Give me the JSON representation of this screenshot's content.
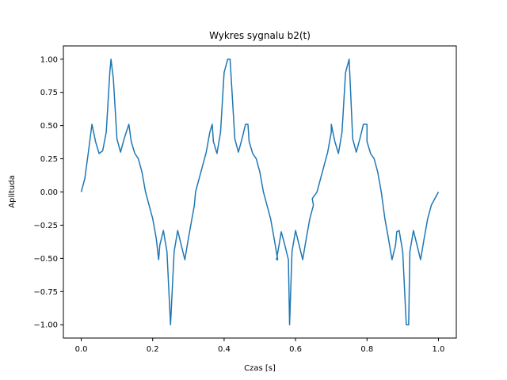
{
  "chart_data": {
    "type": "line",
    "title": "Wykres sygnalu b2(t)",
    "xlabel": "Czas [s]",
    "ylabel": "Aplituda",
    "xlim": [
      -0.05,
      1.05
    ],
    "ylim": [
      -1.1,
      1.1
    ],
    "x_ticks": [
      0.0,
      0.2,
      0.4,
      0.6,
      0.8,
      1.0
    ],
    "x_tick_labels": [
      "0.0",
      "0.2",
      "0.4",
      "0.6",
      "0.8",
      "1.0"
    ],
    "y_ticks": [
      -1.0,
      -0.75,
      -0.5,
      -0.25,
      0.0,
      0.25,
      0.5,
      0.75,
      1.0
    ],
    "y_tick_labels": [
      "−1.00",
      "−0.75",
      "−0.50",
      "−0.25",
      "0.00",
      "0.25",
      "0.50",
      "0.75",
      "1.00"
    ],
    "grid": false,
    "line_color": "#1f77b4",
    "series": [
      {
        "x": [
          0.0,
          0.01,
          0.02,
          0.03,
          0.04,
          0.05,
          0.06,
          0.07,
          0.08,
          0.0833,
          0.09,
          0.1,
          0.11,
          0.12,
          0.1333,
          0.14,
          0.15,
          0.16,
          0.17,
          0.18,
          0.19,
          0.2,
          0.21,
          0.2167,
          0.22,
          0.23,
          0.24,
          0.25,
          0.26,
          0.27,
          0.28,
          0.29,
          0.3,
          0.31,
          0.3167,
          0.32,
          0.33,
          0.34,
          0.35,
          0.36,
          0.3667,
          0.37,
          0.38,
          0.39,
          0.4,
          0.41,
          0.4167,
          0.42,
          0.43,
          0.44,
          0.45,
          0.46,
          0.4667,
          0.47,
          0.48,
          0.49,
          0.5,
          0.51,
          0.52,
          0.53,
          0.54,
          0.55,
          0.5467,
          0.56,
          0.57,
          0.58,
          0.5833,
          0.59,
          0.6,
          0.61,
          0.62,
          0.63,
          0.64,
          0.65,
          0.6467,
          0.66,
          0.67,
          0.68,
          0.69,
          0.7,
          0.7,
          0.71,
          0.72,
          0.73,
          0.74,
          0.75,
          0.76,
          0.77,
          0.78,
          0.79,
          0.8,
          0.8,
          0.81,
          0.82,
          0.83,
          0.84,
          0.85,
          0.86,
          0.87,
          0.88,
          0.8833,
          0.89,
          0.9,
          0.91,
          0.9167,
          0.92,
          0.93,
          0.94,
          0.95,
          0.96,
          0.97,
          0.98,
          0.99,
          1.0
        ],
        "y": [
          0.0,
          0.1,
          0.3,
          0.51,
          0.38,
          0.29,
          0.31,
          0.45,
          0.9,
          1.0,
          0.85,
          0.4,
          0.3,
          0.4,
          0.51,
          0.38,
          0.29,
          0.25,
          0.15,
          0.0,
          -0.1,
          -0.2,
          -0.35,
          -0.51,
          -0.4,
          -0.29,
          -0.45,
          -1.0,
          -0.45,
          -0.29,
          -0.4,
          -0.51,
          -0.35,
          -0.2,
          -0.1,
          0.0,
          0.1,
          0.2,
          0.3,
          0.45,
          0.51,
          0.38,
          0.29,
          0.45,
          0.9,
          1.0,
          1.0,
          0.85,
          0.4,
          0.3,
          0.4,
          0.51,
          0.51,
          0.38,
          0.29,
          0.25,
          0.15,
          0.0,
          -0.1,
          -0.2,
          -0.35,
          -0.51,
          -0.51,
          -0.3,
          -0.4,
          -0.51,
          -1.0,
          -0.45,
          -0.29,
          -0.4,
          -0.51,
          -0.35,
          -0.2,
          -0.1,
          -0.05,
          0.0,
          0.1,
          0.2,
          0.3,
          0.45,
          0.51,
          0.38,
          0.29,
          0.45,
          0.9,
          1.0,
          0.4,
          0.3,
          0.4,
          0.51,
          0.51,
          0.38,
          0.29,
          0.25,
          0.15,
          0.0,
          -0.2,
          -0.35,
          -0.51,
          -0.4,
          -0.3,
          -0.29,
          -0.45,
          -1.0,
          -1.0,
          -0.45,
          -0.29,
          -0.4,
          -0.51,
          -0.35,
          -0.2,
          -0.1,
          -0.05,
          0.0
        ]
      }
    ]
  }
}
